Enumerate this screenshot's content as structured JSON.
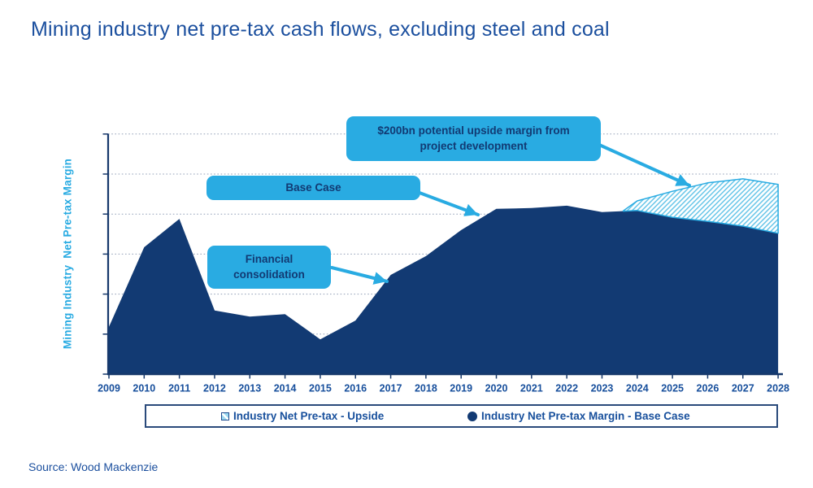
{
  "page": {
    "title": "Mining industry net pre-tax cash flows, excluding steel and coal",
    "source": "Source: Wood Mackenzie"
  },
  "colors": {
    "accent_light_blue": "#29ABE2",
    "dark_navy": "#123A73",
    "title_text": "#1B4F9E",
    "tick_label_text": "#174F9C",
    "gridline": "#93A1B8",
    "axis": "#16386B",
    "hatch_stripe": "#66C5E8",
    "hatch_background": "#FFFFFF",
    "legend_border": "#2A4A7B",
    "callout_background": "#29ABE2",
    "callout_text": "#123A73"
  },
  "legend": {
    "items": [
      {
        "swatch": "diagonal-hatch-light-blue",
        "label": "Industry Net Pre-tax - Upside"
      },
      {
        "swatch": "solid-navy-circle",
        "label": "Industry Net Pre-tax Margin - Base Case"
      }
    ]
  },
  "chart_data": {
    "type": "area",
    "title": "Mining industry net pre-tax cash flows, excluding steel and coal",
    "xlabel": "",
    "ylabel": "Mining Industry  Net Pre-tax Margin",
    "x_ticks": [
      2009,
      2010,
      2011,
      2012,
      2013,
      2014,
      2015,
      2016,
      2017,
      2018,
      2019,
      2020,
      2021,
      2022,
      2023,
      2024,
      2025,
      2026,
      2027,
      2028
    ],
    "y_axis": {
      "numeric_labels_visible": false,
      "units": "relative margin scale (no numeric labels shown)",
      "range": [
        0,
        6
      ],
      "gridline_units": [
        1,
        2,
        3,
        4,
        5,
        6
      ],
      "grid_style": "dotted horizontal"
    },
    "legend_position": "bottom",
    "series": [
      {
        "name": "Industry Net Pre-tax Margin - Base Case",
        "style": "solid-fill",
        "color": "#123A73",
        "x": [
          2009,
          2010,
          2011,
          2012,
          2013,
          2014,
          2015,
          2016,
          2017,
          2018,
          2019,
          2020,
          2021,
          2022,
          2023,
          2024,
          2025,
          2026,
          2027,
          2028
        ],
        "values": [
          1.18,
          3.17,
          3.88,
          1.59,
          1.44,
          1.5,
          0.87,
          1.34,
          2.48,
          2.95,
          3.6,
          4.13,
          4.15,
          4.21,
          4.05,
          4.09,
          3.92,
          3.82,
          3.7,
          3.52
        ]
      },
      {
        "name": "Industry Net Pre-tax - Upside",
        "style": "diagonal-hatch",
        "color": "#29ABE2",
        "x": [
          2023.6,
          2024,
          2025,
          2026,
          2027,
          2028
        ],
        "values": [
          4.08,
          4.33,
          4.57,
          4.78,
          4.88,
          4.74
        ],
        "note": "plotted stacked above the base case; equal to base case before 2023.6"
      }
    ],
    "annotations": [
      {
        "text": "$200bn potential upside margin from project development",
        "points_to": "upside hatched area near 2025"
      },
      {
        "text": "Base Case",
        "points_to": "base case curve near 2019-2020"
      },
      {
        "text": "Financial consolidation",
        "points_to": "base case curve near 2017"
      }
    ]
  }
}
